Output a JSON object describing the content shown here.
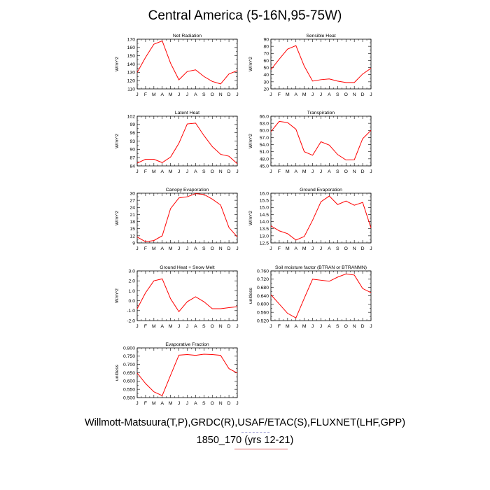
{
  "title": "Central America (5-16N,95-75W)",
  "footer": {
    "line1": "Willmott-Matsuura(T,P),GRDC(R),USAF/ETAC(S),FLUXNET(LHF,GPP)",
    "line2": "1850_170 (yrs 12-21)"
  },
  "colors": {
    "series": "#ff0000",
    "axis": "#000000"
  },
  "chart_data": [
    {
      "type": "line",
      "title": "Net Radiation",
      "ylabel": "W/m^2",
      "categories": [
        "J",
        "F",
        "M",
        "A",
        "M",
        "J",
        "J",
        "A",
        "S",
        "O",
        "N",
        "D",
        "J"
      ],
      "values": [
        130,
        148,
        164,
        168,
        141,
        121,
        131,
        133,
        125,
        119,
        116,
        128,
        132
      ],
      "ylim": [
        110,
        170
      ],
      "yticks": [
        110,
        120,
        130,
        140,
        150,
        160,
        170
      ],
      "ytick_labels": [
        "110",
        "120",
        "130",
        "140",
        "150",
        "160",
        "170"
      ]
    },
    {
      "type": "line",
      "title": "Sensible Heat",
      "ylabel": "W/m^2",
      "categories": [
        "J",
        "F",
        "M",
        "A",
        "M",
        "J",
        "J",
        "A",
        "S",
        "O",
        "N",
        "D",
        "J"
      ],
      "values": [
        47,
        62,
        76,
        81,
        52,
        31,
        33,
        34,
        31,
        29,
        29,
        41,
        49
      ],
      "ylim": [
        20,
        90
      ],
      "yticks": [
        20,
        30,
        40,
        50,
        60,
        70,
        80,
        90
      ],
      "ytick_labels": [
        "20",
        "30",
        "40",
        "50",
        "60",
        "70",
        "80",
        "90"
      ]
    },
    {
      "type": "line",
      "title": "Latent Heat",
      "ylabel": "W/m^2",
      "categories": [
        "J",
        "F",
        "M",
        "A",
        "M",
        "J",
        "J",
        "A",
        "S",
        "O",
        "N",
        "D",
        "J"
      ],
      "values": [
        85,
        86.4,
        86.4,
        85.2,
        87.2,
        92.2,
        99.2,
        99.5,
        95,
        91,
        88.2,
        87.5,
        84.8
      ],
      "ylim": [
        84,
        102
      ],
      "yticks": [
        84,
        87,
        90,
        93,
        96,
        99,
        102
      ],
      "ytick_labels": [
        "84",
        "87",
        "90",
        "93",
        "96",
        "99",
        "102"
      ]
    },
    {
      "type": "line",
      "title": "Transpiration",
      "ylabel": "W/m^2",
      "categories": [
        "J",
        "F",
        "M",
        "A",
        "M",
        "J",
        "J",
        "A",
        "S",
        "O",
        "N",
        "D",
        "J"
      ],
      "values": [
        59.5,
        63.8,
        63.3,
        60.5,
        51,
        49.5,
        55.2,
        53.8,
        49.8,
        47.5,
        47.6,
        56.5,
        60
      ],
      "ylim": [
        45,
        66
      ],
      "yticks": [
        45,
        48,
        51,
        54,
        57,
        60,
        63,
        66
      ],
      "ytick_labels": [
        "45.0",
        "48.0",
        "51.0",
        "54.0",
        "57.0",
        "60.0",
        "63.0",
        "66.0"
      ]
    },
    {
      "type": "line",
      "title": "Canopy Evaporation",
      "ylabel": "W/m^2",
      "categories": [
        "J",
        "F",
        "M",
        "A",
        "M",
        "J",
        "J",
        "A",
        "S",
        "O",
        "N",
        "D",
        "J"
      ],
      "values": [
        11.5,
        9.5,
        10,
        12,
        23.5,
        28,
        28.5,
        29.8,
        29.5,
        27.5,
        25,
        15.5,
        11.5
      ],
      "ylim": [
        9,
        30
      ],
      "yticks": [
        9,
        12,
        15,
        18,
        21,
        24,
        27,
        30
      ],
      "ytick_labels": [
        "9",
        "12",
        "15",
        "18",
        "21",
        "24",
        "27",
        "30"
      ]
    },
    {
      "type": "line",
      "title": "Ground Evaporation",
      "ylabel": "W/m^2",
      "categories": [
        "J",
        "F",
        "M",
        "A",
        "M",
        "J",
        "J",
        "A",
        "S",
        "O",
        "N",
        "D",
        "J"
      ],
      "values": [
        13.7,
        13.35,
        13.15,
        12.7,
        12.95,
        14.1,
        15.4,
        15.8,
        15.2,
        15.45,
        15.15,
        15.35,
        13.55
      ],
      "ylim": [
        12.5,
        16
      ],
      "yticks": [
        12.5,
        13,
        13.5,
        14,
        14.5,
        15,
        15.5,
        16
      ],
      "ytick_labels": [
        "12.5",
        "13.0",
        "13.5",
        "14.0",
        "14.5",
        "15.0",
        "15.5",
        "16.0"
      ]
    },
    {
      "type": "line",
      "title": "Ground Heat + Snow Melt",
      "ylabel": "W/m^2",
      "categories": [
        "J",
        "F",
        "M",
        "A",
        "M",
        "J",
        "J",
        "A",
        "S",
        "O",
        "N",
        "D",
        "J"
      ],
      "values": [
        -0.8,
        0.8,
        2.0,
        2.2,
        0.2,
        -1.1,
        -0.1,
        0.4,
        -0.1,
        -0.8,
        -0.8,
        -0.7,
        -0.6
      ],
      "ylim": [
        -2,
        3
      ],
      "yticks": [
        -2,
        -1,
        0,
        1,
        2,
        3
      ],
      "ytick_labels": [
        "-2.0",
        "-1.0",
        "0.0",
        "1.0",
        "2.0",
        "3.0"
      ]
    },
    {
      "type": "line",
      "title": "Soil moisture factor (BTRAN or BTRANMN)",
      "ylabel": "unitless",
      "categories": [
        "J",
        "F",
        "M",
        "A",
        "M",
        "J",
        "J",
        "A",
        "S",
        "O",
        "N",
        "D",
        "J"
      ],
      "values": [
        0.645,
        0.6,
        0.555,
        0.533,
        0.628,
        0.72,
        0.715,
        0.71,
        0.73,
        0.745,
        0.74,
        0.675,
        0.655
      ],
      "ylim": [
        0.52,
        0.76
      ],
      "yticks": [
        0.52,
        0.56,
        0.6,
        0.64,
        0.68,
        0.72,
        0.76
      ],
      "ytick_labels": [
        "0.520",
        "0.560",
        "0.600",
        "0.640",
        "0.680",
        "0.720",
        "0.760"
      ]
    },
    {
      "type": "line",
      "title": "Evaporative Fraction",
      "ylabel": "unitless",
      "categories": [
        "J",
        "F",
        "M",
        "A",
        "M",
        "J",
        "J",
        "A",
        "S",
        "O",
        "N",
        "D",
        "J"
      ],
      "values": [
        0.648,
        0.585,
        0.535,
        0.512,
        0.635,
        0.756,
        0.76,
        0.755,
        0.762,
        0.76,
        0.755,
        0.675,
        0.648
      ],
      "ylim": [
        0.5,
        0.8
      ],
      "yticks": [
        0.5,
        0.55,
        0.6,
        0.65,
        0.7,
        0.75,
        0.8
      ],
      "ytick_labels": [
        "0.500",
        "0.550",
        "0.600",
        "0.650",
        "0.700",
        "0.750",
        "0.800"
      ]
    }
  ]
}
